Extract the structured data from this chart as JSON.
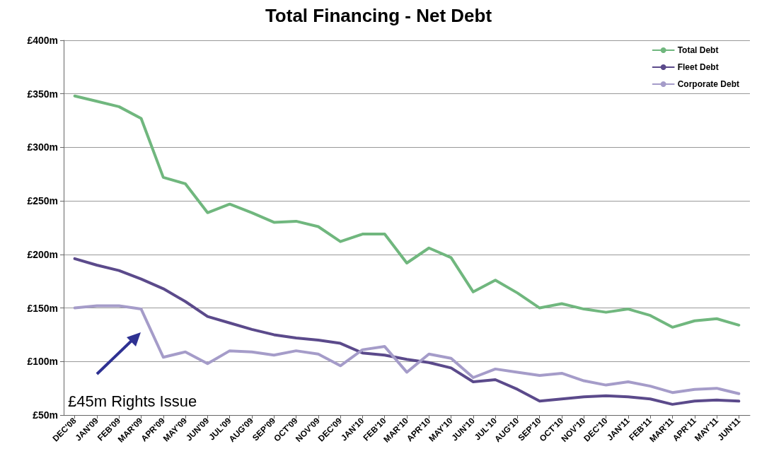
{
  "chart_data": {
    "type": "line",
    "title": "Total Financing - Net Debt",
    "categories": [
      "DEC'08",
      "JAN'09",
      "FEB'09",
      "MAR'09",
      "APR'09",
      "MAY'09",
      "JUN'09",
      "JUL'09",
      "AUG'09",
      "SEP'09",
      "OCT'09",
      "NOV'09",
      "DEC'09",
      "JAN'10",
      "FEB'10",
      "MAR'10",
      "APR'10",
      "MAY'10",
      "JUN'10",
      "JUL'10",
      "AUG'10",
      "SEP'10",
      "OCT'10",
      "NOV'10",
      "DEC'10",
      "JAN'11",
      "FEB'11",
      "MAR'11",
      "APR'11",
      "MAY'11",
      "JUN'11"
    ],
    "series": [
      {
        "name": "Total Debt",
        "color": "#70b77e",
        "values": [
          348,
          343,
          338,
          327,
          272,
          266,
          239,
          247,
          239,
          230,
          231,
          226,
          212,
          219,
          219,
          192,
          206,
          197,
          165,
          176,
          164,
          150,
          154,
          149,
          146,
          149,
          143,
          132,
          138,
          140,
          134
        ]
      },
      {
        "name": "Fleet Debt",
        "color": "#5b4a8b",
        "values": [
          196,
          190,
          185,
          177,
          168,
          156,
          142,
          136,
          130,
          125,
          122,
          120,
          117,
          108,
          106,
          102,
          99,
          94,
          81,
          83,
          74,
          63,
          65,
          67,
          68,
          67,
          65,
          60,
          63,
          64,
          63
        ]
      },
      {
        "name": "Corporate Debt",
        "color": "#a59cc9",
        "values": [
          150,
          152,
          152,
          149,
          104,
          109,
          98,
          110,
          109,
          106,
          110,
          107,
          96,
          111,
          114,
          90,
          107,
          103,
          85,
          93,
          90,
          87,
          89,
          82,
          78,
          81,
          77,
          71,
          74,
          75,
          70
        ]
      }
    ],
    "ylim": [
      50,
      400
    ],
    "yticks": [
      {
        "value": 50,
        "label": "£50m"
      },
      {
        "value": 100,
        "label": "£100m"
      },
      {
        "value": 150,
        "label": "£150m"
      },
      {
        "value": 200,
        "label": "£200m"
      },
      {
        "value": 250,
        "label": "£250m"
      },
      {
        "value": 300,
        "label": "£300m"
      },
      {
        "value": 350,
        "label": "£350m"
      },
      {
        "value": 400,
        "label": "£400m"
      }
    ],
    "grid": "y",
    "legend": "top right",
    "marker": "none",
    "line_style": "solid",
    "annotations": [
      "£45m Rights Issue"
    ]
  }
}
